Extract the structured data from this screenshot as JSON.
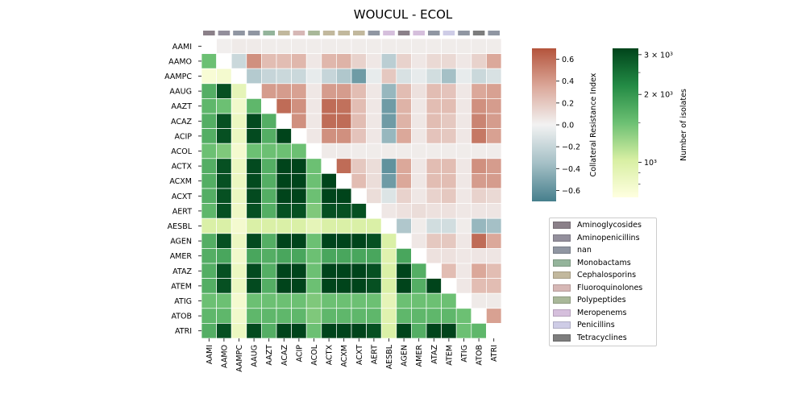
{
  "chart_data": {
    "type": "heatmap",
    "title": "WOUCUL - ECOL",
    "labels": [
      "AAMI",
      "AAMO",
      "AAMPC",
      "AAUG",
      "AAZT",
      "ACAZ",
      "ACIP",
      "ACOL",
      "ACTX",
      "ACXM",
      "ACXT",
      "AERT",
      "AESBL",
      "AGEN",
      "AMER",
      "ATAZ",
      "ATEM",
      "ATIG",
      "ATOB",
      "ATRI"
    ],
    "class_of": [
      "Aminoglycosides",
      "Aminopenicillins",
      "nan",
      "nan",
      "Monobactams",
      "Cephalosporins",
      "Fluoroquinolones",
      "Polypeptides",
      "Cephalosporins",
      "Cephalosporins",
      "Cephalosporins",
      "nan",
      "Meropenems",
      "Aminoglycosides",
      "Meropenems",
      "nan",
      "Penicillins",
      "nan",
      "Tetracyclines",
      "nan"
    ],
    "upper_matrix_description": "Collateral Resistance Index (row, column) for column index > row index",
    "collateral_resistance_index": [
      [
        0.0,
        0.02,
        0.04,
        0.04,
        0.03,
        0.03,
        0.03,
        0.03,
        0.03,
        0.03,
        0.03,
        0.03,
        0.03,
        0.03,
        0.03,
        0.03,
        0.03,
        0.03,
        0.03,
        0.03
      ],
      [
        0.0,
        0.0,
        -0.18,
        0.45,
        0.25,
        0.25,
        0.28,
        0.05,
        0.28,
        0.3,
        0.15,
        0.05,
        -0.25,
        0.15,
        0.05,
        0.12,
        0.12,
        0.05,
        0.15,
        0.35
      ],
      [
        0.0,
        0.0,
        0.0,
        -0.28,
        -0.2,
        -0.18,
        -0.18,
        -0.05,
        -0.2,
        -0.3,
        -0.55,
        -0.05,
        0.2,
        -0.12,
        -0.05,
        -0.15,
        -0.35,
        -0.05,
        -0.18,
        -0.12
      ],
      [
        0.0,
        0.0,
        0.0,
        0.0,
        0.4,
        0.4,
        0.38,
        0.05,
        0.4,
        0.4,
        0.25,
        0.05,
        -0.4,
        0.25,
        0.08,
        0.25,
        0.22,
        0.05,
        0.35,
        0.38
      ],
      [
        0.0,
        0.0,
        0.0,
        0.0,
        0.0,
        0.6,
        0.45,
        0.05,
        0.6,
        0.58,
        0.25,
        0.05,
        -0.55,
        0.3,
        0.05,
        0.25,
        0.25,
        0.05,
        0.45,
        0.4
      ],
      [
        0.0,
        0.0,
        0.0,
        0.0,
        0.0,
        0.0,
        0.45,
        0.05,
        0.6,
        0.6,
        0.25,
        0.05,
        -0.55,
        0.3,
        0.05,
        0.25,
        0.2,
        0.05,
        0.5,
        0.4
      ],
      [
        0.0,
        0.0,
        0.0,
        0.0,
        0.0,
        0.0,
        0.0,
        0.05,
        0.45,
        0.45,
        0.22,
        0.05,
        -0.4,
        0.35,
        0.05,
        0.22,
        0.2,
        0.05,
        0.55,
        0.38
      ],
      [
        0.0,
        0.0,
        0.0,
        0.0,
        0.0,
        0.0,
        0.0,
        0.0,
        0.04,
        0.04,
        0.03,
        0.03,
        0.03,
        0.03,
        0.03,
        0.03,
        0.03,
        0.03,
        0.03,
        0.03
      ],
      [
        0.0,
        0.0,
        0.0,
        0.0,
        0.0,
        0.0,
        0.0,
        0.0,
        0.0,
        0.6,
        0.2,
        0.1,
        -0.6,
        0.35,
        0.05,
        0.25,
        0.25,
        0.05,
        0.45,
        0.4
      ],
      [
        0.0,
        0.0,
        0.0,
        0.0,
        0.0,
        0.0,
        0.0,
        0.0,
        0.0,
        0.0,
        0.25,
        0.1,
        -0.55,
        0.35,
        0.05,
        0.25,
        0.25,
        0.05,
        0.4,
        0.4
      ],
      [
        0.0,
        0.0,
        0.0,
        0.0,
        0.0,
        0.0,
        0.0,
        0.0,
        0.0,
        0.0,
        0.0,
        0.1,
        -0.1,
        0.15,
        0.05,
        0.15,
        0.2,
        0.05,
        0.15,
        0.12
      ],
      [
        0.0,
        0.0,
        0.0,
        0.0,
        0.0,
        0.0,
        0.0,
        0.0,
        0.0,
        0.0,
        0.0,
        0.0,
        0.05,
        0.08,
        0.1,
        0.08,
        0.08,
        0.05,
        0.06,
        0.06
      ],
      [
        0.0,
        0.0,
        0.0,
        0.0,
        0.0,
        0.0,
        0.0,
        0.0,
        0.0,
        0.0,
        0.0,
        0.0,
        0.0,
        -0.3,
        0.03,
        -0.15,
        -0.15,
        0.03,
        -0.4,
        -0.35
      ],
      [
        0.0,
        0.0,
        0.0,
        0.0,
        0.0,
        0.0,
        0.0,
        0.0,
        0.0,
        0.0,
        0.0,
        0.0,
        0.0,
        0.0,
        0.05,
        0.2,
        0.2,
        0.05,
        0.6,
        0.35
      ],
      [
        0.0,
        0.0,
        0.0,
        0.0,
        0.0,
        0.0,
        0.0,
        0.0,
        0.0,
        0.0,
        0.0,
        0.0,
        0.0,
        0.0,
        0.0,
        0.08,
        0.08,
        0.05,
        0.06,
        0.06
      ],
      [
        0.0,
        0.0,
        0.0,
        0.0,
        0.0,
        0.0,
        0.0,
        0.0,
        0.0,
        0.0,
        0.0,
        0.0,
        0.0,
        0.0,
        0.0,
        0.0,
        0.25,
        0.05,
        0.35,
        0.25
      ],
      [
        0.0,
        0.0,
        0.0,
        0.0,
        0.0,
        0.0,
        0.0,
        0.0,
        0.0,
        0.0,
        0.0,
        0.0,
        0.0,
        0.0,
        0.0,
        0.0,
        0.0,
        0.05,
        0.25,
        0.25
      ],
      [
        0.0,
        0.0,
        0.0,
        0.0,
        0.0,
        0.0,
        0.0,
        0.0,
        0.0,
        0.0,
        0.0,
        0.0,
        0.0,
        0.0,
        0.0,
        0.0,
        0.0,
        0.0,
        0.04,
        0.04
      ],
      [
        0.0,
        0.0,
        0.0,
        0.0,
        0.0,
        0.0,
        0.0,
        0.0,
        0.0,
        0.0,
        0.0,
        0.0,
        0.0,
        0.0,
        0.0,
        0.0,
        0.0,
        0.0,
        0.0,
        0.38
      ],
      [
        0.0,
        0.0,
        0.0,
        0.0,
        0.0,
        0.0,
        0.0,
        0.0,
        0.0,
        0.0,
        0.0,
        0.0,
        0.0,
        0.0,
        0.0,
        0.0,
        0.0,
        0.0,
        0.0,
        0.0
      ]
    ],
    "lower_matrix_description": "Number of isolates (row, column) for column index < row index",
    "number_of_isolates": [
      [
        0,
        0,
        0,
        0,
        0,
        0,
        0,
        0,
        0,
        0,
        0,
        0,
        0,
        0,
        0,
        0,
        0,
        0,
        0,
        0
      ],
      [
        1500,
        0,
        0,
        0,
        0,
        0,
        0,
        0,
        0,
        0,
        0,
        0,
        0,
        0,
        0,
        0,
        0,
        0,
        0,
        0
      ],
      [
        750,
        780,
        0,
        0,
        0,
        0,
        0,
        0,
        0,
        0,
        0,
        0,
        0,
        0,
        0,
        0,
        0,
        0,
        0,
        0
      ],
      [
        1700,
        3000,
        900,
        0,
        0,
        0,
        0,
        0,
        0,
        0,
        0,
        0,
        0,
        0,
        0,
        0,
        0,
        0,
        0,
        0
      ],
      [
        1600,
        1500,
        800,
        1600,
        0,
        0,
        0,
        0,
        0,
        0,
        0,
        0,
        0,
        0,
        0,
        0,
        0,
        0,
        0,
        0
      ],
      [
        1700,
        3000,
        850,
        3100,
        1700,
        0,
        0,
        0,
        0,
        0,
        0,
        0,
        0,
        0,
        0,
        0,
        0,
        0,
        0,
        0
      ],
      [
        1700,
        3000,
        850,
        3100,
        1700,
        3200,
        0,
        0,
        0,
        0,
        0,
        0,
        0,
        0,
        0,
        0,
        0,
        0,
        0,
        0
      ],
      [
        1500,
        1400,
        780,
        1500,
        1500,
        1500,
        1500,
        0,
        0,
        0,
        0,
        0,
        0,
        0,
        0,
        0,
        0,
        0,
        0,
        0
      ],
      [
        1700,
        3000,
        850,
        3100,
        1700,
        3200,
        3200,
        1500,
        0,
        0,
        0,
        0,
        0,
        0,
        0,
        0,
        0,
        0,
        0,
        0
      ],
      [
        1700,
        3000,
        850,
        3100,
        1700,
        3200,
        3200,
        1500,
        3200,
        0,
        0,
        0,
        0,
        0,
        0,
        0,
        0,
        0,
        0,
        0
      ],
      [
        1700,
        3000,
        850,
        3100,
        1700,
        3200,
        3200,
        1500,
        3200,
        3200,
        0,
        0,
        0,
        0,
        0,
        0,
        0,
        0,
        0,
        0
      ],
      [
        1600,
        3000,
        830,
        3000,
        1700,
        3000,
        3000,
        1400,
        3000,
        3000,
        3000,
        0,
        0,
        0,
        0,
        0,
        0,
        0,
        0,
        0
      ],
      [
        1000,
        1000,
        780,
        1000,
        1000,
        1000,
        1000,
        900,
        1000,
        1000,
        1000,
        1000,
        0,
        0,
        0,
        0,
        0,
        0,
        0,
        0
      ],
      [
        1700,
        3000,
        850,
        3100,
        1700,
        3200,
        3200,
        1500,
        3200,
        3200,
        3200,
        3000,
        1000,
        0,
        0,
        0,
        0,
        0,
        0,
        0
      ],
      [
        1700,
        1800,
        800,
        1800,
        1700,
        1800,
        1800,
        1500,
        1800,
        1800,
        1800,
        1800,
        950,
        1800,
        0,
        0,
        0,
        0,
        0,
        0
      ],
      [
        1700,
        3000,
        850,
        3100,
        1700,
        3200,
        3200,
        1500,
        3200,
        3200,
        3200,
        3000,
        1000,
        3200,
        1700,
        0,
        0,
        0,
        0,
        0
      ],
      [
        1700,
        3000,
        850,
        3100,
        1700,
        3200,
        3200,
        1500,
        3200,
        3200,
        3200,
        3000,
        1000,
        3200,
        1700,
        3200,
        0,
        0,
        0,
        0
      ],
      [
        1500,
        1500,
        780,
        1500,
        1500,
        1500,
        1500,
        1400,
        1500,
        1500,
        1500,
        1500,
        900,
        1500,
        1500,
        1500,
        1500,
        0,
        0,
        0
      ],
      [
        1600,
        1600,
        800,
        1600,
        1600,
        1600,
        1600,
        1400,
        1600,
        1600,
        1600,
        1600,
        950,
        1600,
        1600,
        1600,
        1600,
        1500,
        0,
        0
      ],
      [
        1700,
        3000,
        850,
        3100,
        1700,
        3200,
        3200,
        1500,
        3200,
        3200,
        3200,
        3000,
        1000,
        3200,
        1700,
        3200,
        3200,
        1500,
        1600,
        0
      ]
    ],
    "cri_colorbar": {
      "label": "Collateral Resistance Index",
      "range": [
        -0.7,
        0.7
      ],
      "ticks": [
        0.6,
        0.4,
        0.2,
        0.0,
        -0.2,
        -0.4,
        -0.6
      ],
      "tick_labels": [
        "0.6",
        "0.4",
        "0.2",
        "0.0",
        "−0.2",
        "−0.4",
        "−0.6"
      ]
    },
    "count_colorbar": {
      "label": "Number of isolates",
      "scale": "log",
      "range": [
        700,
        3200
      ],
      "ticks": [
        3000,
        2000,
        1000
      ],
      "tick_labels": [
        "3 × 10³",
        "2 × 10³",
        "10³"
      ]
    },
    "legend": {
      "placement": "right",
      "entries": [
        {
          "name": "Aminoglycosides",
          "color": "#8b8089"
        },
        {
          "name": "Aminopenicillins",
          "color": "#938f9c"
        },
        {
          "name": "nan",
          "color": "#9096a2"
        },
        {
          "name": "Monobactams",
          "color": "#94b49b"
        },
        {
          "name": "Cephalosporins",
          "color": "#c2b89d"
        },
        {
          "name": "Fluoroquinolones",
          "color": "#d6b7b5"
        },
        {
          "name": "Polypeptides",
          "color": "#a9b899"
        },
        {
          "name": "Meropenems",
          "color": "#d5bfdc"
        },
        {
          "name": "Penicillins",
          "color": "#cecce6"
        },
        {
          "name": "Tetracyclines",
          "color": "#7d7d7d"
        }
      ]
    },
    "colors": {
      "cri_low": "#467f8c",
      "cri_mid": "#f2f2f2",
      "cri_high": "#b4543c",
      "count_low": "#ffffe0",
      "count_mid": "#41ab5d",
      "count_high": "#00441b",
      "diagonal": "#ffffff"
    }
  }
}
